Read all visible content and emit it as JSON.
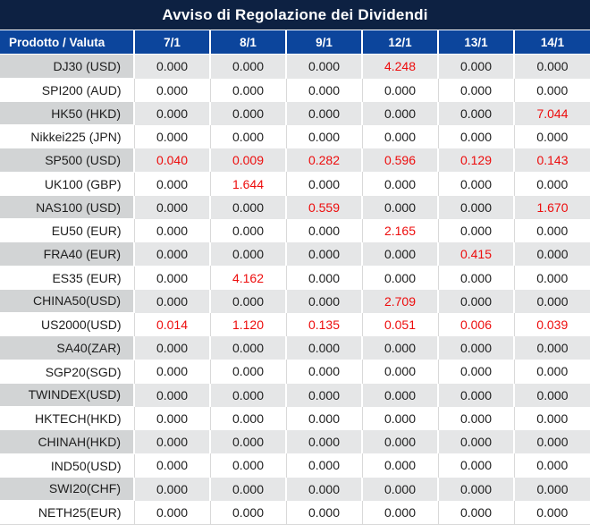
{
  "title": "Avviso di Regolazione dei Dividendi",
  "table": {
    "product_column_header": "Prodotto / Valuta",
    "date_columns": [
      "7/1",
      "8/1",
      "9/1",
      "12/1",
      "13/1",
      "14/1"
    ],
    "rows": [
      {
        "product": "DJ30 (USD)",
        "values": [
          "0.000",
          "0.000",
          "0.000",
          "4.248",
          "0.000",
          "0.000"
        ]
      },
      {
        "product": "SPI200 (AUD)",
        "values": [
          "0.000",
          "0.000",
          "0.000",
          "0.000",
          "0.000",
          "0.000"
        ]
      },
      {
        "product": "HK50 (HKD)",
        "values": [
          "0.000",
          "0.000",
          "0.000",
          "0.000",
          "0.000",
          "7.044"
        ]
      },
      {
        "product": "Nikkei225 (JPN)",
        "values": [
          "0.000",
          "0.000",
          "0.000",
          "0.000",
          "0.000",
          "0.000"
        ]
      },
      {
        "product": "SP500 (USD)",
        "values": [
          "0.040",
          "0.009",
          "0.282",
          "0.596",
          "0.129",
          "0.143"
        ]
      },
      {
        "product": "UK100 (GBP)",
        "values": [
          "0.000",
          "1.644",
          "0.000",
          "0.000",
          "0.000",
          "0.000"
        ]
      },
      {
        "product": "NAS100 (USD)",
        "values": [
          "0.000",
          "0.000",
          "0.559",
          "0.000",
          "0.000",
          "1.670"
        ]
      },
      {
        "product": "EU50 (EUR)",
        "values": [
          "0.000",
          "0.000",
          "0.000",
          "2.165",
          "0.000",
          "0.000"
        ]
      },
      {
        "product": "FRA40 (EUR)",
        "values": [
          "0.000",
          "0.000",
          "0.000",
          "0.000",
          "0.415",
          "0.000"
        ]
      },
      {
        "product": "ES35 (EUR)",
        "values": [
          "0.000",
          "4.162",
          "0.000",
          "0.000",
          "0.000",
          "0.000"
        ]
      },
      {
        "product": "CHINA50(USD)",
        "values": [
          "0.000",
          "0.000",
          "0.000",
          "2.709",
          "0.000",
          "0.000"
        ]
      },
      {
        "product": "US2000(USD)",
        "values": [
          "0.014",
          "1.120",
          "0.135",
          "0.051",
          "0.006",
          "0.039"
        ]
      },
      {
        "product": "SA40(ZAR)",
        "values": [
          "0.000",
          "0.000",
          "0.000",
          "0.000",
          "0.000",
          "0.000"
        ]
      },
      {
        "product": "SGP20(SGD)",
        "values": [
          "0.000",
          "0.000",
          "0.000",
          "0.000",
          "0.000",
          "0.000"
        ]
      },
      {
        "product": "TWINDEX(USD)",
        "values": [
          "0.000",
          "0.000",
          "0.000",
          "0.000",
          "0.000",
          "0.000"
        ]
      },
      {
        "product": "HKTECH(HKD)",
        "values": [
          "0.000",
          "0.000",
          "0.000",
          "0.000",
          "0.000",
          "0.000"
        ]
      },
      {
        "product": "CHINAH(HKD)",
        "values": [
          "0.000",
          "0.000",
          "0.000",
          "0.000",
          "0.000",
          "0.000"
        ]
      },
      {
        "product": "IND50(USD)",
        "values": [
          "0.000",
          "0.000",
          "0.000",
          "0.000",
          "0.000",
          "0.000"
        ]
      },
      {
        "product": "SWI20(CHF)",
        "values": [
          "0.000",
          "0.000",
          "0.000",
          "0.000",
          "0.000",
          "0.000"
        ]
      },
      {
        "product": "NETH25(EUR)",
        "values": [
          "0.000",
          "0.000",
          "0.000",
          "0.000",
          "0.000",
          "0.000"
        ]
      }
    ],
    "zero_value": "0.000"
  },
  "colors": {
    "title_bar_bg": "#0d2142",
    "title_text": "#ffffff",
    "header_bg": "#0c459c",
    "header_text": "#ffffff",
    "row_alt_label_bg": "#d2d4d5",
    "row_alt_bg": "#e5e6e7",
    "row_bg": "#ffffff",
    "value_text": "#1d1d1d",
    "nonzero_value_text": "#ed0c0c"
  }
}
